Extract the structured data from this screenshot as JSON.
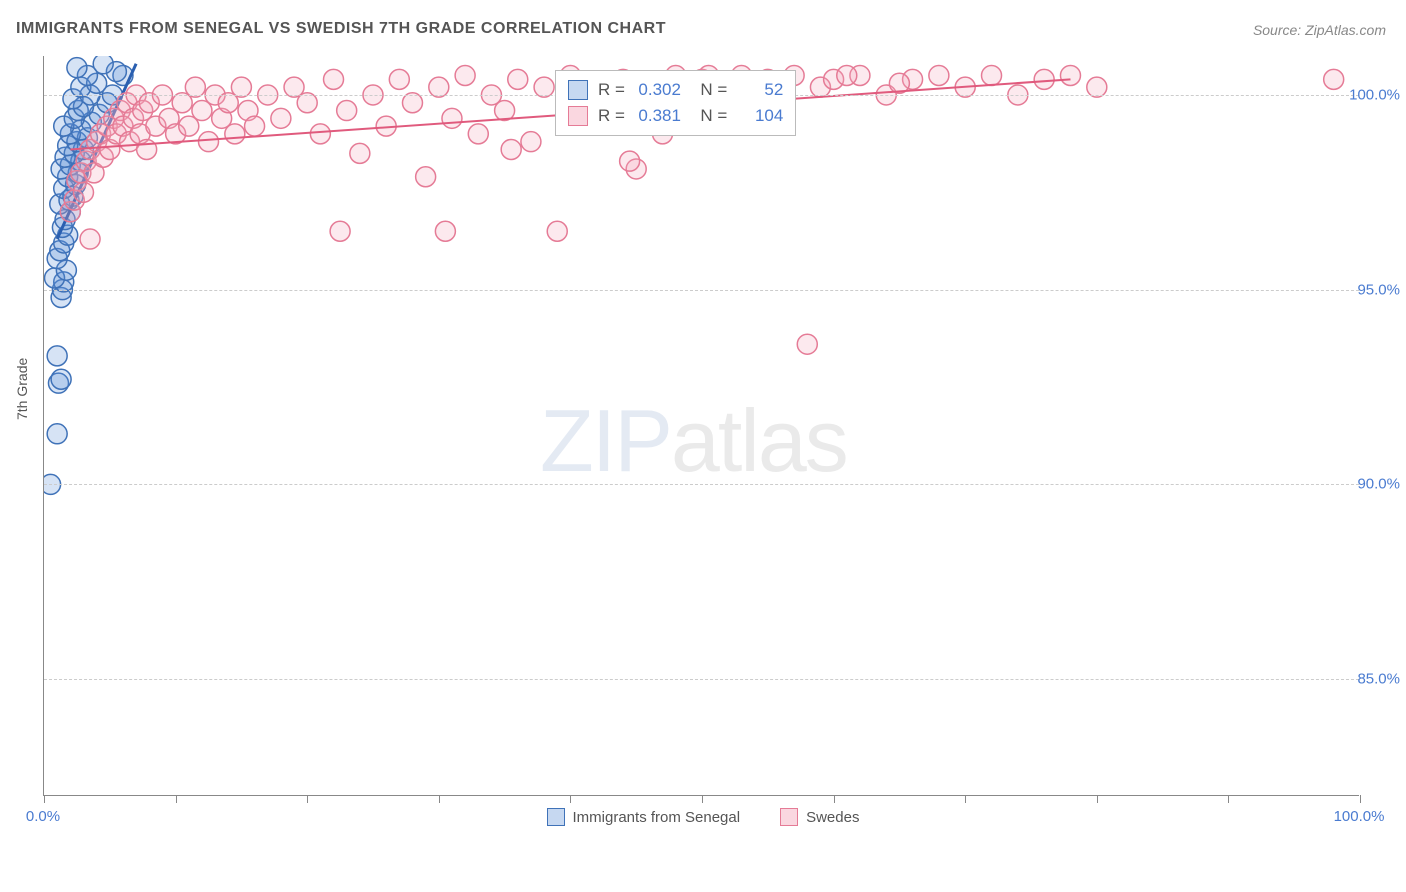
{
  "title": "IMMIGRANTS FROM SENEGAL VS SWEDISH 7TH GRADE CORRELATION CHART",
  "source": "Source: ZipAtlas.com",
  "y_axis_title": "7th Grade",
  "watermark": {
    "bold": "ZIP",
    "light": "atlas"
  },
  "chart": {
    "type": "scatter",
    "background_color": "#ffffff",
    "grid_color": "#cccccc",
    "axis_color": "#888888",
    "xlim": [
      0,
      100
    ],
    "ylim": [
      82,
      101
    ],
    "x_ticks": [
      0,
      10,
      20,
      30,
      40,
      50,
      60,
      70,
      80,
      90,
      100
    ],
    "x_tick_labels": {
      "0": "0.0%",
      "100": "100.0%"
    },
    "y_grid": [
      85,
      90,
      95,
      100
    ],
    "y_tick_labels": {
      "85": "85.0%",
      "90": "90.0%",
      "95": "95.0%",
      "100": "100.0%"
    },
    "marker_radius": 10,
    "marker_stroke_width": 1.5,
    "marker_fill_opacity": 0.25,
    "series": [
      {
        "id": "senegal",
        "label": "Immigrants from Senegal",
        "color": "#5b8fd6",
        "stroke": "#3f72b8",
        "R": "0.302",
        "N": "52",
        "trend": {
          "x1": 1.0,
          "y1": 96.3,
          "x2": 7.0,
          "y2": 100.8,
          "color": "#2a5fb0",
          "width": 3
        },
        "points": [
          [
            0.5,
            90.0
          ],
          [
            1.0,
            91.3
          ],
          [
            1.1,
            92.6
          ],
          [
            1.3,
            92.7
          ],
          [
            1.0,
            93.3
          ],
          [
            1.3,
            94.8
          ],
          [
            1.4,
            95.0
          ],
          [
            1.5,
            95.2
          ],
          [
            0.8,
            95.3
          ],
          [
            1.7,
            95.5
          ],
          [
            1.0,
            95.8
          ],
          [
            1.2,
            96.0
          ],
          [
            1.5,
            96.2
          ],
          [
            1.8,
            96.4
          ],
          [
            1.4,
            96.6
          ],
          [
            1.6,
            96.8
          ],
          [
            2.0,
            97.0
          ],
          [
            1.2,
            97.2
          ],
          [
            1.9,
            97.3
          ],
          [
            2.2,
            97.4
          ],
          [
            1.5,
            97.6
          ],
          [
            2.4,
            97.7
          ],
          [
            1.8,
            97.9
          ],
          [
            2.6,
            98.0
          ],
          [
            1.3,
            98.1
          ],
          [
            2.0,
            98.2
          ],
          [
            2.8,
            98.3
          ],
          [
            1.6,
            98.4
          ],
          [
            2.3,
            98.5
          ],
          [
            3.0,
            98.6
          ],
          [
            1.8,
            98.7
          ],
          [
            2.5,
            98.8
          ],
          [
            3.3,
            98.9
          ],
          [
            2.0,
            99.0
          ],
          [
            2.8,
            99.1
          ],
          [
            1.5,
            99.2
          ],
          [
            3.6,
            99.3
          ],
          [
            2.3,
            99.4
          ],
          [
            4.2,
            99.5
          ],
          [
            2.6,
            99.6
          ],
          [
            3.0,
            99.7
          ],
          [
            4.8,
            99.8
          ],
          [
            2.2,
            99.9
          ],
          [
            3.5,
            100.0
          ],
          [
            5.2,
            100.0
          ],
          [
            2.8,
            100.2
          ],
          [
            4.0,
            100.3
          ],
          [
            6.0,
            100.5
          ],
          [
            3.3,
            100.5
          ],
          [
            5.5,
            100.6
          ],
          [
            4.5,
            100.8
          ],
          [
            2.5,
            100.7
          ]
        ]
      },
      {
        "id": "swedes",
        "label": "Swedes",
        "color": "#f4a6ba",
        "stroke": "#e57b96",
        "R": "0.381",
        "N": "104",
        "trend": {
          "x1": 2,
          "y1": 98.6,
          "x2": 78,
          "y2": 100.4,
          "color": "#e05a7d",
          "width": 2
        },
        "points": [
          [
            2.0,
            97.0
          ],
          [
            2.3,
            97.3
          ],
          [
            2.5,
            97.8
          ],
          [
            2.8,
            98.0
          ],
          [
            3.0,
            97.5
          ],
          [
            3.2,
            98.3
          ],
          [
            3.5,
            98.6
          ],
          [
            3.8,
            98.0
          ],
          [
            4.0,
            98.8
          ],
          [
            4.3,
            99.0
          ],
          [
            4.5,
            98.4
          ],
          [
            4.8,
            99.2
          ],
          [
            5.0,
            98.6
          ],
          [
            5.3,
            99.4
          ],
          [
            5.5,
            99.0
          ],
          [
            5.8,
            99.6
          ],
          [
            6.0,
            99.2
          ],
          [
            6.3,
            99.8
          ],
          [
            6.5,
            98.8
          ],
          [
            6.8,
            99.4
          ],
          [
            7.0,
            100.0
          ],
          [
            7.3,
            99.0
          ],
          [
            7.5,
            99.6
          ],
          [
            7.8,
            98.6
          ],
          [
            8.0,
            99.8
          ],
          [
            8.5,
            99.2
          ],
          [
            9.0,
            100.0
          ],
          [
            9.5,
            99.4
          ],
          [
            10.0,
            99.0
          ],
          [
            10.5,
            99.8
          ],
          [
            11.0,
            99.2
          ],
          [
            11.5,
            100.2
          ],
          [
            12.0,
            99.6
          ],
          [
            12.5,
            98.8
          ],
          [
            13.0,
            100.0
          ],
          [
            13.5,
            99.4
          ],
          [
            14.0,
            99.8
          ],
          [
            14.5,
            99.0
          ],
          [
            15.0,
            100.2
          ],
          [
            15.5,
            99.6
          ],
          [
            16.0,
            99.2
          ],
          [
            17.0,
            100.0
          ],
          [
            18.0,
            99.4
          ],
          [
            19.0,
            100.2
          ],
          [
            20.0,
            99.8
          ],
          [
            21.0,
            99.0
          ],
          [
            22.0,
            100.4
          ],
          [
            23.0,
            99.6
          ],
          [
            24.0,
            98.5
          ],
          [
            25.0,
            100.0
          ],
          [
            26.0,
            99.2
          ],
          [
            27.0,
            100.4
          ],
          [
            28.0,
            99.8
          ],
          [
            29.0,
            97.9
          ],
          [
            30.0,
            100.2
          ],
          [
            31.0,
            99.4
          ],
          [
            32.0,
            100.5
          ],
          [
            33.0,
            99.0
          ],
          [
            34.0,
            100.0
          ],
          [
            35.0,
            99.6
          ],
          [
            36.0,
            100.4
          ],
          [
            37.0,
            98.8
          ],
          [
            38.0,
            100.2
          ],
          [
            39.0,
            96.5
          ],
          [
            40.0,
            100.5
          ],
          [
            41.0,
            99.8
          ],
          [
            42.0,
            100.0
          ],
          [
            43.0,
            99.4
          ],
          [
            44.0,
            100.4
          ],
          [
            45.0,
            98.1
          ],
          [
            46.0,
            100.2
          ],
          [
            47.0,
            99.0
          ],
          [
            48.0,
            100.5
          ],
          [
            49.0,
            100.0
          ],
          [
            50.0,
            100.4
          ],
          [
            51.0,
            99.6
          ],
          [
            52.0,
            100.2
          ],
          [
            53.0,
            100.5
          ],
          [
            54.0,
            99.8
          ],
          [
            55.0,
            100.4
          ],
          [
            56.0,
            100.0
          ],
          [
            57.0,
            100.5
          ],
          [
            58.0,
            93.6
          ],
          [
            59.0,
            100.2
          ],
          [
            60.0,
            100.4
          ],
          [
            62.0,
            100.5
          ],
          [
            64.0,
            100.0
          ],
          [
            66.0,
            100.4
          ],
          [
            68.0,
            100.5
          ],
          [
            70.0,
            100.2
          ],
          [
            72.0,
            100.5
          ],
          [
            74.0,
            100.0
          ],
          [
            76.0,
            100.4
          ],
          [
            78.0,
            100.5
          ],
          [
            80.0,
            100.2
          ],
          [
            22.5,
            96.5
          ],
          [
            30.5,
            96.5
          ],
          [
            35.5,
            98.6
          ],
          [
            44.5,
            98.3
          ],
          [
            50.5,
            100.5
          ],
          [
            61.0,
            100.5
          ],
          [
            65.0,
            100.3
          ],
          [
            98.0,
            100.4
          ],
          [
            3.5,
            96.3
          ]
        ]
      }
    ]
  },
  "bottom_legend": [
    {
      "label": "Immigrants from Senegal",
      "fill": "rgba(91,143,214,0.35)",
      "stroke": "#3f72b8"
    },
    {
      "label": "Swedes",
      "fill": "rgba(244,166,186,0.45)",
      "stroke": "#e57b96"
    }
  ]
}
